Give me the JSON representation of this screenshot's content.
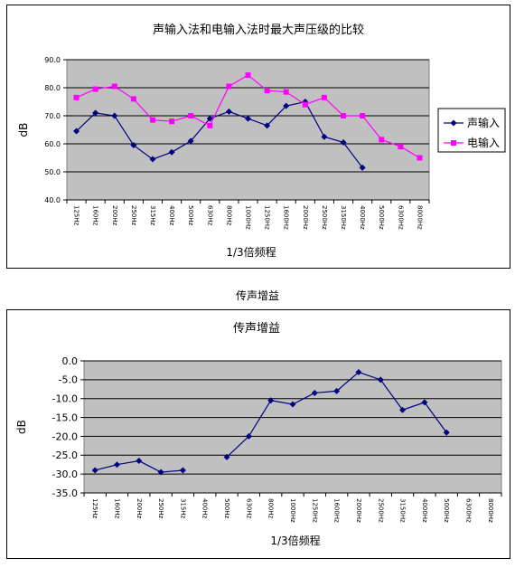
{
  "chart_data": [
    {
      "type": "line",
      "title": "声输入法和电输入法时最大声压级的比较",
      "xlabel": "1/3倍频程",
      "ylabel": "dB",
      "ylim": [
        40,
        90
      ],
      "yticks": [
        "40.0",
        "50.0",
        "60.0",
        "70.0",
        "80.0",
        "90.0"
      ],
      "grid": true,
      "legend": "right",
      "categories": [
        "125Hz",
        "160Hz",
        "200Hz",
        "250Hz",
        "315Hz",
        "400Hz",
        "500Hz",
        "630Hz",
        "800Hz",
        "1000Hz",
        "1250Hz",
        "1600Hz",
        "2000Hz",
        "2500Hz",
        "3150Hz",
        "4000Hz",
        "5000Hz",
        "6300Hz",
        "8000Hz"
      ],
      "series": [
        {
          "name": "声输入",
          "color": "#000080",
          "marker": "diamond",
          "values": [
            64.5,
            71.0,
            70.0,
            59.5,
            54.5,
            57.0,
            61.0,
            69.0,
            71.5,
            69.0,
            66.5,
            73.5,
            75.0,
            62.5,
            60.5,
            51.5,
            null,
            null,
            null
          ]
        },
        {
          "name": "电输入",
          "color": "#ff00ff",
          "marker": "square",
          "values": [
            76.5,
            79.5,
            80.5,
            76.0,
            68.5,
            68.0,
            70.0,
            66.5,
            80.5,
            84.5,
            79.0,
            78.5,
            74.0,
            76.5,
            70.0,
            70.0,
            61.5,
            59.0,
            55.0
          ]
        }
      ]
    },
    {
      "type": "line",
      "title": "传声增益",
      "xlabel": "1/3倍频程",
      "ylabel": "dB",
      "ylim": [
        -35,
        0
      ],
      "yticks": [
        "-35.0",
        "-30.0",
        "-25.0",
        "-20.0",
        "-15.0",
        "-10.0",
        "-5.0",
        "0.0"
      ],
      "grid": true,
      "categories": [
        "125Hz",
        "160Hz",
        "200Hz",
        "250Hz",
        "315Hz",
        "400Hz",
        "500Hz",
        "630Hz",
        "800Hz",
        "1000Hz",
        "1250Hz",
        "1600Hz",
        "2000Hz",
        "2500Hz",
        "3150Hz",
        "4000Hz",
        "5000Hz",
        "6300Hz",
        "8000Hz"
      ],
      "series": [
        {
          "color": "#000080",
          "marker": "diamond",
          "values": [
            -29.0,
            -27.5,
            -26.5,
            -29.5,
            -29.0,
            null,
            -25.5,
            -20.0,
            -10.5,
            -11.5,
            -8.5,
            -8.0,
            -3.0,
            -5.0,
            -13.0,
            -11.0,
            -19.0,
            null,
            null
          ]
        }
      ]
    }
  ],
  "between_title": "传声增益"
}
